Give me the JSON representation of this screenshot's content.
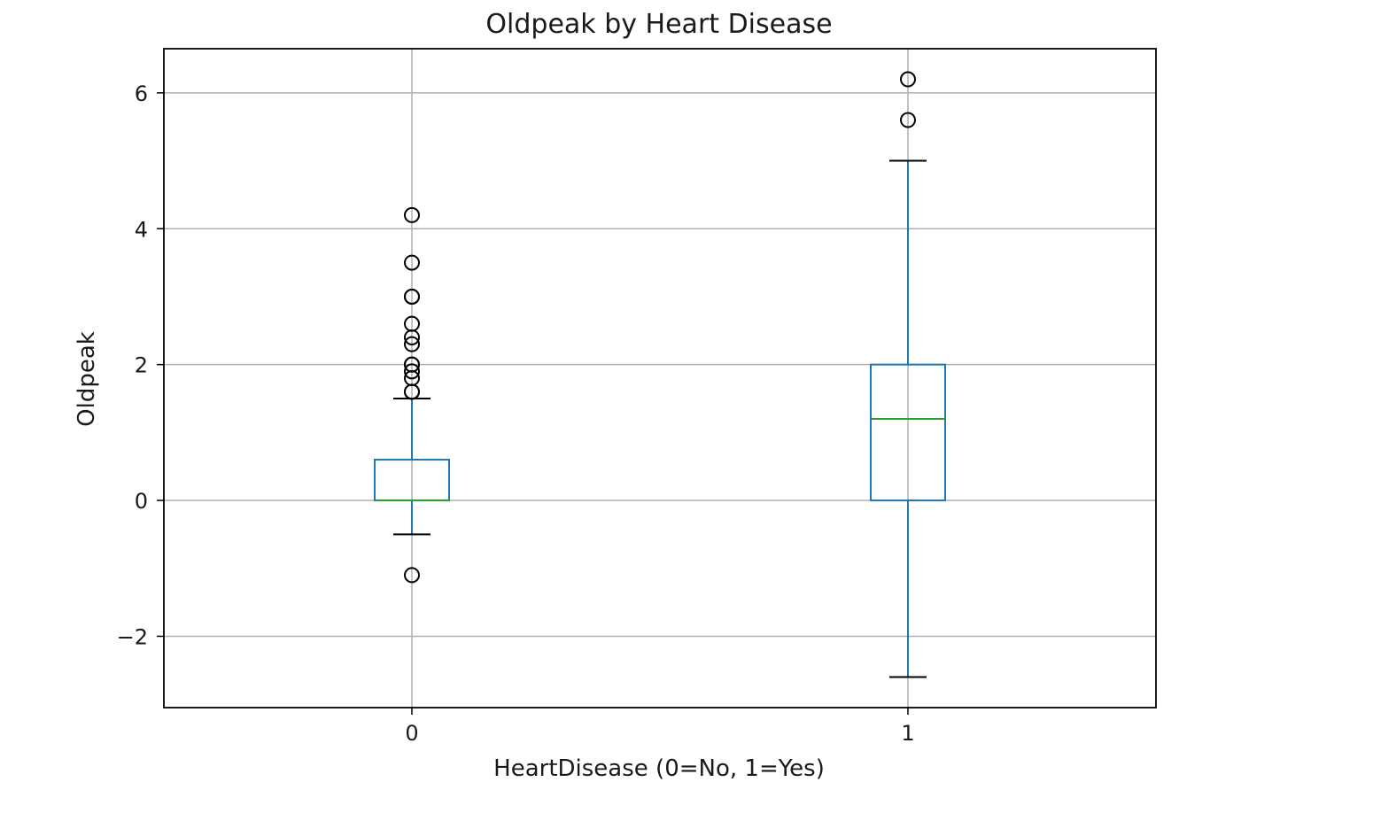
{
  "chart_data": {
    "type": "box",
    "title": "Oldpeak by Heart Disease",
    "xlabel": "HeartDisease (0=No, 1=Yes)",
    "ylabel": "Oldpeak",
    "categories": [
      "0",
      "1"
    ],
    "ylim": [
      -3.05,
      6.65
    ],
    "yticks": [
      -2,
      0,
      2,
      4,
      6
    ],
    "ytick_labels": [
      "−2",
      "0",
      "2",
      "4",
      "6"
    ],
    "grid": true,
    "colors": {
      "box": "#1f77b4",
      "median": "#2ca02c",
      "whisker_cap": "#000000",
      "grid": "#b0b0b0"
    },
    "boxes": [
      {
        "category": "0",
        "whisker_low": -0.5,
        "q1": 0.0,
        "median": 0.0,
        "q3": 0.6,
        "whisker_high": 1.5,
        "outliers": [
          -1.1,
          1.6,
          1.6,
          1.8,
          1.9,
          2.0,
          2.0,
          2.3,
          2.4,
          2.6,
          3.0,
          3.0,
          3.5,
          4.2
        ]
      },
      {
        "category": "1",
        "whisker_low": -2.6,
        "q1": 0.0,
        "median": 1.2,
        "q3": 2.0,
        "whisker_high": 5.0,
        "outliers": [
          5.6,
          6.2
        ]
      }
    ]
  }
}
